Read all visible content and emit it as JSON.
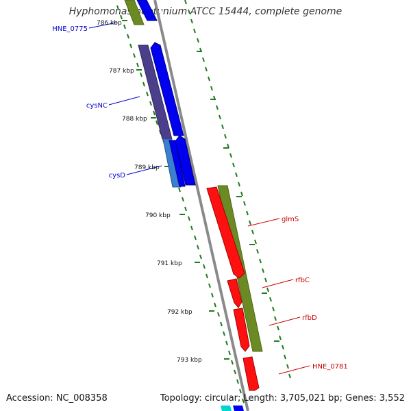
{
  "title": "Hyphomonas neptunium ATCC 15444, complete genome",
  "footer": {
    "accession": "Accession: NC_008358",
    "summary": "Topology: circular; Length: 3,705,021 bp; Genes: 3,552"
  },
  "colors": {
    "backbone": "#8a8a8a",
    "tick": "#1e7d1e",
    "strand_plus_gene": "#0000ee",
    "cds_plus": "#6b8a23",
    "strand_minus_gene": "#ff1010",
    "label_plus": "#0000cc",
    "label_minus": "#cc0000",
    "cysNC_domain": "#4b3f8c",
    "cysD_domain": "#3b7fcf",
    "cyan_feature": "#00d4d4"
  },
  "ruler": {
    "labels": [
      "786 kbp",
      "787 kbp",
      "788 kbp",
      "789 kbp",
      "790 kbp",
      "791 kbp",
      "792 kbp",
      "793 kbp"
    ]
  },
  "genes_left": [
    "HNE_0775",
    "cysNC",
    "cysD"
  ],
  "genes_right": [
    "glmS",
    "rfbC",
    "rfbD",
    "HNE_0781"
  ]
}
